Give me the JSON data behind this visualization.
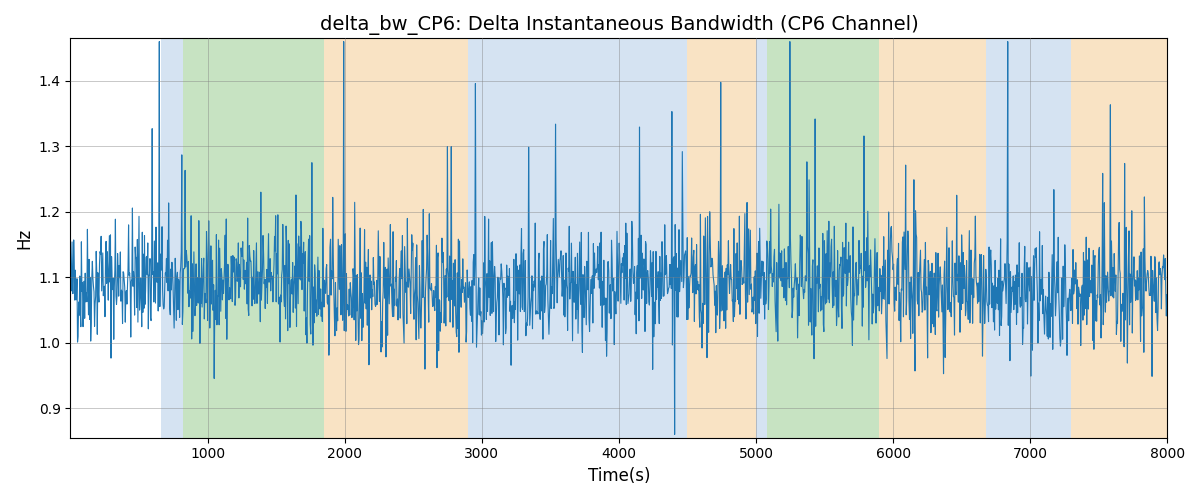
{
  "title": "delta_bw_CP6: Delta Instantaneous Bandwidth (CP6 Channel)",
  "xlabel": "Time(s)",
  "ylabel": "Hz",
  "xlim": [
    0,
    8000
  ],
  "ylim": [
    0.855,
    1.465
  ],
  "yticks": [
    0.9,
    1.0,
    1.1,
    1.2,
    1.3,
    1.4
  ],
  "xticks": [
    1000,
    2000,
    3000,
    4000,
    5000,
    6000,
    7000,
    8000
  ],
  "line_color": "#1f77b4",
  "line_width": 0.8,
  "regions": [
    {
      "xmin": 660,
      "xmax": 820,
      "color": "#adc8e6",
      "alpha": 0.5
    },
    {
      "xmin": 820,
      "xmax": 1850,
      "color": "#90c987",
      "alpha": 0.5
    },
    {
      "xmin": 1850,
      "xmax": 2900,
      "color": "#f5c98a",
      "alpha": 0.5
    },
    {
      "xmin": 2900,
      "xmax": 4500,
      "color": "#adc8e6",
      "alpha": 0.5
    },
    {
      "xmin": 4500,
      "xmax": 5000,
      "color": "#f5c98a",
      "alpha": 0.5
    },
    {
      "xmin": 5000,
      "xmax": 5080,
      "color": "#adc8e6",
      "alpha": 0.5
    },
    {
      "xmin": 5080,
      "xmax": 5900,
      "color": "#90c987",
      "alpha": 0.5
    },
    {
      "xmin": 5900,
      "xmax": 6680,
      "color": "#f5c98a",
      "alpha": 0.5
    },
    {
      "xmin": 6680,
      "xmax": 7300,
      "color": "#adc8e6",
      "alpha": 0.5
    },
    {
      "xmin": 7300,
      "xmax": 8000,
      "color": "#f5c98a",
      "alpha": 0.5
    }
  ],
  "seed": 42,
  "n_points": 2000,
  "figsize": [
    12,
    5
  ],
  "dpi": 100
}
